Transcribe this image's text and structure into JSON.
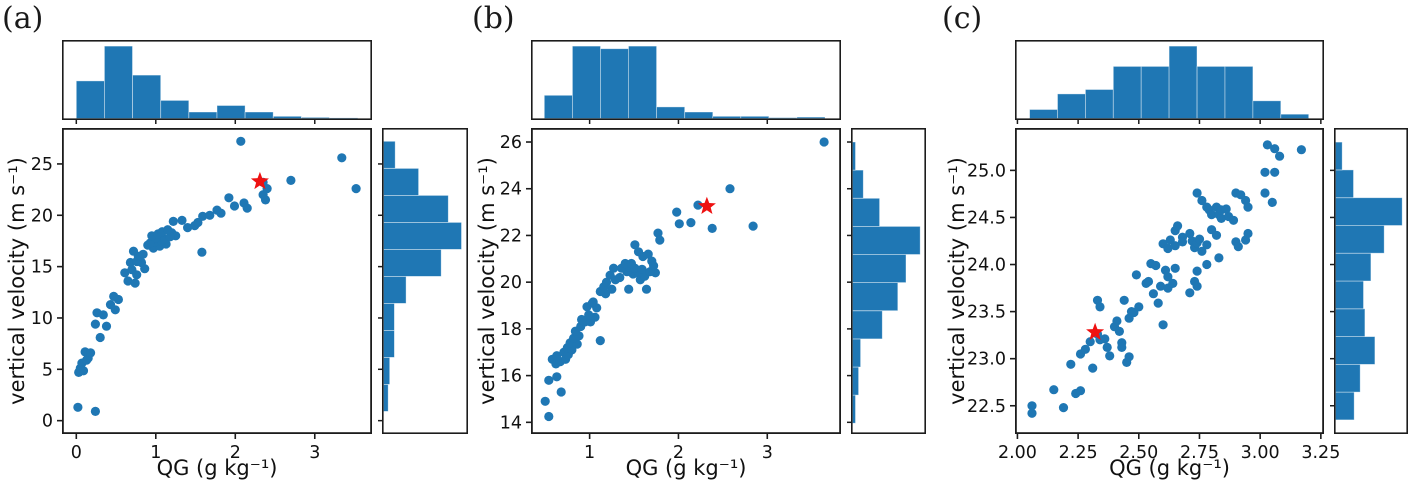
{
  "figure": {
    "description": "Three joint scatter plots of vertical velocity versus graupel mixing ratio (QG), each with marginal histograms on top and right, blue dots and one red star marker",
    "background_color": "#ffffff"
  },
  "colors": {
    "marker": "#1f77b4",
    "histogram_fill": "#1f77b4",
    "histogram_edge": "rgba(255,255,255,0.5)",
    "star": "#ee1111",
    "spine": "#1c1c1c",
    "text": "#111111"
  },
  "chart_data": [
    {
      "type": "scatter",
      "panel_label": "(a)",
      "xlabel": "QG (g kg⁻¹)",
      "ylabel": "vertical velocity (m s⁻¹)",
      "xlim": [
        -0.18,
        3.72
      ],
      "ylim": [
        -1.3,
        28.5
      ],
      "xtick_values": [
        0,
        1,
        2,
        3
      ],
      "xtick_labels": [
        "0",
        "1",
        "2",
        "3"
      ],
      "ytick_values": [
        0,
        5,
        10,
        15,
        20,
        25
      ],
      "ytick_labels": [
        "0",
        "5",
        "10",
        "15",
        "20",
        "25"
      ],
      "star": [
        2.31,
        23.3
      ],
      "points": [
        [
          0.02,
          1.3
        ],
        [
          0.24,
          0.9
        ],
        [
          0.03,
          4.7
        ],
        [
          0.05,
          5.1
        ],
        [
          0.09,
          4.85
        ],
        [
          0.07,
          5.6
        ],
        [
          0.13,
          5.9
        ],
        [
          0.15,
          6.1
        ],
        [
          0.11,
          6.7
        ],
        [
          0.18,
          6.6
        ],
        [
          0.3,
          8.1
        ],
        [
          0.24,
          9.4
        ],
        [
          0.38,
          9.2
        ],
        [
          0.26,
          10.5
        ],
        [
          0.34,
          10.3
        ],
        [
          0.49,
          10.8
        ],
        [
          0.43,
          11.3
        ],
        [
          0.53,
          11.8
        ],
        [
          0.47,
          12.1
        ],
        [
          0.65,
          13.6
        ],
        [
          0.74,
          13.4
        ],
        [
          0.61,
          14.4
        ],
        [
          0.7,
          14.7
        ],
        [
          0.76,
          14.2
        ],
        [
          0.86,
          14.8
        ],
        [
          0.68,
          15.4
        ],
        [
          0.82,
          15.4
        ],
        [
          0.76,
          15.5
        ],
        [
          0.78,
          16.0
        ],
        [
          0.84,
          16.2
        ],
        [
          0.72,
          16.5
        ],
        [
          0.97,
          16.8
        ],
        [
          0.9,
          17.1
        ],
        [
          1.05,
          17.0
        ],
        [
          0.99,
          17.4
        ],
        [
          0.93,
          17.3
        ],
        [
          1.13,
          17.2
        ],
        [
          1.07,
          17.5
        ],
        [
          1.11,
          17.7
        ],
        [
          1.0,
          17.8
        ],
        [
          0.95,
          18.0
        ],
        [
          1.03,
          18.2
        ],
        [
          1.2,
          18.3
        ],
        [
          1.25,
          18.0
        ],
        [
          1.18,
          17.9
        ],
        [
          1.08,
          18.4
        ],
        [
          1.15,
          18.6
        ],
        [
          1.22,
          19.4
        ],
        [
          1.33,
          19.5
        ],
        [
          1.4,
          18.8
        ],
        [
          1.49,
          19.0
        ],
        [
          1.53,
          19.3
        ],
        [
          1.59,
          19.9
        ],
        [
          1.58,
          16.4
        ],
        [
          1.68,
          20.0
        ],
        [
          1.77,
          20.5
        ],
        [
          1.82,
          20.2
        ],
        [
          1.92,
          21.7
        ],
        [
          1.99,
          20.9
        ],
        [
          2.11,
          21.2
        ],
        [
          2.15,
          20.7
        ],
        [
          2.38,
          21.5
        ],
        [
          2.35,
          22.0
        ],
        [
          2.4,
          22.6
        ],
        [
          2.35,
          23.2
        ],
        [
          2.7,
          23.4
        ],
        [
          2.07,
          27.2
        ],
        [
          3.34,
          25.6
        ],
        [
          3.52,
          22.6
        ]
      ],
      "x_hist": {
        "start": 0.0,
        "end": 3.54,
        "heights": [
          0.52,
          1.0,
          0.6,
          0.25,
          0.09,
          0.18,
          0.09,
          0.03,
          0.015,
          0.008
        ]
      },
      "y_hist": {
        "start": 0.9,
        "end": 27.2,
        "heights": [
          0.06,
          0.08,
          0.14,
          0.14,
          0.29,
          0.74,
          1.0,
          0.83,
          0.45,
          0.15
        ]
      }
    },
    {
      "type": "scatter",
      "panel_label": "(b)",
      "xlabel": "QG (g kg⁻¹)",
      "ylabel": "vertical velocity (m s⁻¹)",
      "xlim": [
        0.34,
        3.83
      ],
      "ylim": [
        13.5,
        26.6
      ],
      "xtick_values": [
        1,
        2,
        3
      ],
      "xtick_labels": [
        "1",
        "2",
        "3"
      ],
      "ytick_values": [
        14,
        16,
        18,
        20,
        22,
        24,
        26
      ],
      "ytick_labels": [
        "14",
        "16",
        "18",
        "20",
        "22",
        "24",
        "26"
      ],
      "star": [
        2.32,
        23.25
      ],
      "points": [
        [
          0.5,
          14.9
        ],
        [
          0.54,
          14.25
        ],
        [
          0.54,
          15.8
        ],
        [
          0.63,
          15.95
        ],
        [
          0.68,
          15.3
        ],
        [
          0.58,
          16.7
        ],
        [
          0.62,
          16.5
        ],
        [
          0.67,
          16.6
        ],
        [
          0.63,
          16.85
        ],
        [
          0.71,
          17.0
        ],
        [
          0.73,
          16.7
        ],
        [
          0.76,
          16.9
        ],
        [
          0.75,
          17.2
        ],
        [
          0.8,
          17.1
        ],
        [
          0.78,
          17.4
        ],
        [
          0.86,
          17.35
        ],
        [
          0.82,
          17.6
        ],
        [
          0.88,
          17.7
        ],
        [
          0.84,
          17.9
        ],
        [
          1.12,
          17.5
        ],
        [
          0.9,
          18.1
        ],
        [
          0.95,
          18.3
        ],
        [
          1.01,
          18.3
        ],
        [
          0.91,
          18.4
        ],
        [
          1.06,
          18.5
        ],
        [
          0.99,
          18.6
        ],
        [
          1.08,
          18.9
        ],
        [
          0.97,
          18.95
        ],
        [
          1.03,
          19.1
        ],
        [
          1.04,
          19.15
        ],
        [
          1.18,
          19.5
        ],
        [
          1.12,
          19.6
        ],
        [
          1.25,
          19.7
        ],
        [
          1.44,
          19.7
        ],
        [
          1.64,
          19.7
        ],
        [
          1.16,
          19.8
        ],
        [
          1.19,
          20.0
        ],
        [
          1.29,
          20.1
        ],
        [
          1.57,
          20.1
        ],
        [
          1.34,
          20.2
        ],
        [
          1.62,
          20.25
        ],
        [
          1.23,
          20.3
        ],
        [
          1.49,
          20.35
        ],
        [
          1.42,
          20.45
        ],
        [
          1.55,
          20.4
        ],
        [
          1.74,
          20.4
        ],
        [
          1.27,
          20.6
        ],
        [
          1.36,
          20.6
        ],
        [
          1.44,
          20.65
        ],
        [
          1.51,
          20.6
        ],
        [
          1.59,
          20.55
        ],
        [
          1.68,
          20.45
        ],
        [
          1.4,
          20.8
        ],
        [
          1.47,
          20.8
        ],
        [
          1.7,
          20.9
        ],
        [
          1.72,
          20.7
        ],
        [
          1.6,
          21.1
        ],
        [
          1.55,
          21.3
        ],
        [
          1.66,
          21.2
        ],
        [
          1.51,
          21.6
        ],
        [
          1.77,
          22.1
        ],
        [
          1.79,
          21.8
        ],
        [
          1.98,
          23.0
        ],
        [
          2.01,
          22.5
        ],
        [
          2.14,
          22.55
        ],
        [
          2.22,
          23.3
        ],
        [
          2.38,
          22.3
        ],
        [
          2.58,
          24.0
        ],
        [
          2.84,
          22.4
        ],
        [
          3.64,
          26.0
        ]
      ],
      "x_hist": {
        "start": 0.49,
        "end": 3.65,
        "heights": [
          0.32,
          1.0,
          0.965,
          1.0,
          0.16,
          0.09,
          0.03,
          0.03,
          0.012,
          0.02
        ]
      },
      "y_hist": {
        "start": 13.96,
        "end": 26.0,
        "heights": [
          0.045,
          0.09,
          0.12,
          0.44,
          0.67,
          0.79,
          1.0,
          0.4,
          0.16,
          0.045
        ]
      }
    },
    {
      "type": "scatter",
      "panel_label": "(c)",
      "xlabel": "QG (g kg⁻¹)",
      "ylabel": "vertical velocity (m s⁻¹)",
      "xlim": [
        1.99,
        3.263
      ],
      "ylim": [
        22.2,
        25.45
      ],
      "xtick_values": [
        2.0,
        2.25,
        2.5,
        2.75,
        3.0,
        3.25
      ],
      "xtick_labels": [
        "2.00",
        "2.25",
        "2.50",
        "2.75",
        "3.00",
        "3.25"
      ],
      "ytick_values": [
        22.5,
        23.0,
        23.5,
        24.0,
        24.5,
        25.0
      ],
      "ytick_labels": [
        "22.5",
        "23.0",
        "23.5",
        "24.0",
        "24.5",
        "25.0"
      ],
      "star": [
        2.32,
        23.28
      ],
      "points": [
        [
          2.06,
          22.5
        ],
        [
          2.06,
          22.42
        ],
        [
          2.15,
          22.67
        ],
        [
          2.19,
          22.48
        ],
        [
          2.24,
          22.63
        ],
        [
          2.26,
          22.66
        ],
        [
          2.22,
          22.94
        ],
        [
          2.26,
          23.05
        ],
        [
          2.28,
          23.1
        ],
        [
          2.31,
          22.9
        ],
        [
          2.3,
          23.18
        ],
        [
          2.34,
          23.2
        ],
        [
          2.33,
          23.26
        ],
        [
          2.33,
          23.62
        ],
        [
          2.34,
          23.55
        ],
        [
          2.36,
          23.21
        ],
        [
          2.37,
          23.12
        ],
        [
          2.38,
          23.03
        ],
        [
          2.4,
          23.34
        ],
        [
          2.41,
          23.4
        ],
        [
          2.42,
          23.29
        ],
        [
          2.43,
          23.17
        ],
        [
          2.43,
          23.12
        ],
        [
          2.45,
          22.96
        ],
        [
          2.46,
          23.02
        ],
        [
          2.44,
          23.62
        ],
        [
          2.46,
          23.43
        ],
        [
          2.47,
          23.5
        ],
        [
          2.48,
          23.49
        ],
        [
          2.5,
          23.55
        ],
        [
          2.49,
          23.89
        ],
        [
          2.53,
          23.8
        ],
        [
          2.54,
          23.82
        ],
        [
          2.56,
          23.69
        ],
        [
          2.58,
          23.59
        ],
        [
          2.59,
          23.77
        ],
        [
          2.6,
          23.36
        ],
        [
          2.55,
          24.01
        ],
        [
          2.57,
          23.99
        ],
        [
          2.61,
          23.94
        ],
        [
          2.62,
          23.87
        ],
        [
          2.62,
          23.75
        ],
        [
          2.64,
          23.8
        ],
        [
          2.65,
          23.96
        ],
        [
          2.6,
          24.22
        ],
        [
          2.62,
          24.17
        ],
        [
          2.63,
          24.26
        ],
        [
          2.65,
          24.2
        ],
        [
          2.65,
          24.36
        ],
        [
          2.68,
          24.29
        ],
        [
          2.68,
          24.24
        ],
        [
          2.71,
          24.33
        ],
        [
          2.66,
          24.41
        ],
        [
          2.72,
          24.25
        ],
        [
          2.73,
          24.18
        ],
        [
          2.74,
          24.23
        ],
        [
          2.75,
          24.27
        ],
        [
          2.74,
          23.93
        ],
        [
          2.73,
          23.82
        ],
        [
          2.74,
          23.77
        ],
        [
          2.71,
          23.7
        ],
        [
          2.74,
          24.76
        ],
        [
          2.76,
          24.68
        ],
        [
          2.78,
          24.61
        ],
        [
          2.79,
          24.58
        ],
        [
          2.8,
          24.53
        ],
        [
          2.82,
          24.61
        ],
        [
          2.83,
          24.53
        ],
        [
          2.84,
          24.49
        ],
        [
          2.84,
          24.58
        ],
        [
          2.86,
          24.59
        ],
        [
          2.87,
          24.51
        ],
        [
          2.89,
          24.47
        ],
        [
          2.9,
          24.76
        ],
        [
          2.92,
          24.74
        ],
        [
          2.94,
          24.68
        ],
        [
          2.95,
          24.61
        ],
        [
          2.8,
          24.37
        ],
        [
          2.82,
          24.31
        ],
        [
          2.78,
          24.21
        ],
        [
          2.76,
          24.14
        ],
        [
          2.83,
          24.07
        ],
        [
          2.78,
          24.0
        ],
        [
          2.9,
          24.24
        ],
        [
          2.91,
          24.19
        ],
        [
          2.94,
          24.26
        ],
        [
          2.95,
          24.33
        ],
        [
          3.02,
          24.76
        ],
        [
          3.05,
          24.66
        ],
        [
          3.02,
          24.98
        ],
        [
          3.06,
          24.98
        ],
        [
          3.08,
          25.15
        ],
        [
          3.03,
          25.27
        ],
        [
          3.06,
          25.23
        ],
        [
          3.17,
          25.22
        ]
      ],
      "x_hist": {
        "start": 2.05,
        "end": 3.2,
        "heights": [
          0.125,
          0.34,
          0.4,
          0.72,
          0.72,
          1.0,
          0.72,
          0.72,
          0.245,
          0.06
        ]
      },
      "y_hist": {
        "start": 22.35,
        "end": 25.3,
        "heights": [
          0.28,
          0.37,
          0.59,
          0.44,
          0.42,
          0.53,
          0.73,
          1.0,
          0.27,
          0.1
        ]
      }
    }
  ]
}
